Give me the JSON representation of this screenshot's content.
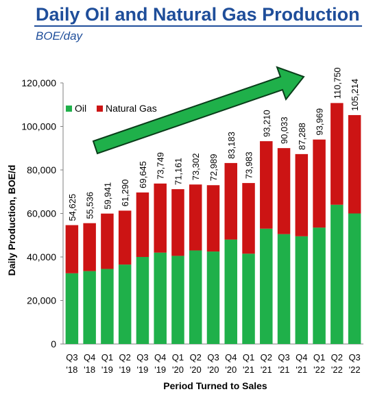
{
  "header": {
    "title": "Daily Oil and Natural Gas Production",
    "subtitle": "BOE/day"
  },
  "colors": {
    "oil": "#1fb04a",
    "gas": "#cc1414",
    "title": "#1f4e9a",
    "arrow_fill": "#1fb04a",
    "arrow_stroke": "#0a3d1a"
  },
  "chart_data": {
    "type": "bar",
    "stacked": true,
    "categories": [
      [
        "Q3",
        "'18"
      ],
      [
        "Q4",
        "'18"
      ],
      [
        "Q1",
        "'19"
      ],
      [
        "Q2",
        "'19"
      ],
      [
        "Q3",
        "'19"
      ],
      [
        "Q4",
        "'19"
      ],
      [
        "Q1",
        "'20"
      ],
      [
        "Q2",
        "'20"
      ],
      [
        "Q3",
        "'20"
      ],
      [
        "Q4",
        "'20"
      ],
      [
        "Q1",
        "'21"
      ],
      [
        "Q2",
        "'21"
      ],
      [
        "Q3",
        "'21"
      ],
      [
        "Q4",
        "'21"
      ],
      [
        "Q1",
        "'22"
      ],
      [
        "Q2",
        "'22"
      ],
      [
        "Q3",
        "'22"
      ]
    ],
    "series": [
      {
        "name": "Oil",
        "values": [
          32500,
          33500,
          34500,
          36500,
          40000,
          42000,
          40500,
          43000,
          42500,
          48000,
          41500,
          53000,
          50500,
          49500,
          53500,
          64000,
          60000
        ]
      },
      {
        "name": "Natural Gas",
        "values": [
          22125,
          22036,
          25441,
          24790,
          29645,
          31749,
          30661,
          30302,
          30489,
          35183,
          32483,
          40210,
          39533,
          37788,
          40469,
          46750,
          45214
        ]
      }
    ],
    "totals": [
      54625,
      55536,
      59941,
      61290,
      69645,
      73749,
      71161,
      73302,
      72989,
      83183,
      73983,
      93210,
      90033,
      87288,
      93969,
      110750,
      105214
    ],
    "total_labels": [
      "54,625",
      "55,536",
      "59,941",
      "61,290",
      "69,645",
      "73,749",
      "71,161",
      "73,302",
      "72,989",
      "83,183",
      "73,983",
      "93,210",
      "90,033",
      "87,288",
      "93,969",
      "110,750",
      "105,214"
    ],
    "ylim": [
      0,
      120000
    ],
    "yticks": [
      0,
      20000,
      40000,
      60000,
      80000,
      100000,
      120000
    ],
    "ytick_labels": [
      "0",
      "20,000",
      "40,000",
      "60,000",
      "80,000",
      "100,000",
      "120,000"
    ],
    "xlabel": "Period Turned to Sales",
    "ylabel": "Daily Production, BOE/d",
    "legend_position": "top-left",
    "annotation": "upward trend arrow"
  }
}
